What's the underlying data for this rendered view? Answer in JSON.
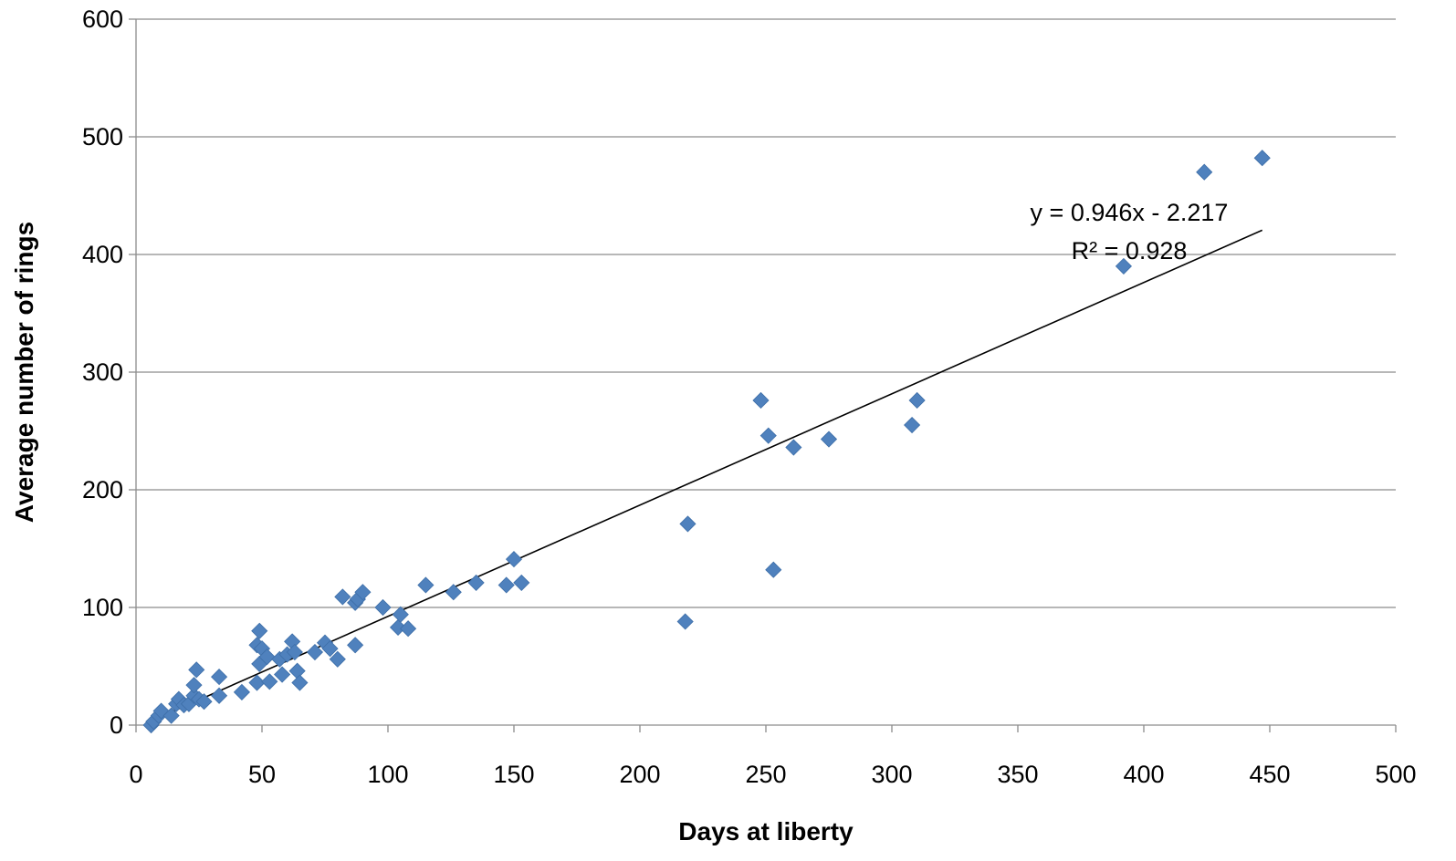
{
  "chart_data": {
    "type": "scatter",
    "title": "",
    "xlabel": "Days at liberty",
    "ylabel": "Average number of rings",
    "xlim": [
      0,
      500
    ],
    "ylim": [
      0,
      600
    ],
    "x_ticks": [
      "0",
      "50",
      "100",
      "150",
      "200",
      "250",
      "300",
      "350",
      "400",
      "450",
      "500"
    ],
    "y_ticks": [
      "0",
      "100",
      "200",
      "300",
      "400",
      "500",
      "600"
    ],
    "grid": "horizontal",
    "legend": "none",
    "marker": "diamond",
    "series": [
      {
        "color": "#4f81bd",
        "points": [
          [
            6,
            0
          ],
          [
            7,
            3
          ],
          [
            9,
            8
          ],
          [
            10,
            12
          ],
          [
            14,
            8
          ],
          [
            16,
            18
          ],
          [
            17,
            22
          ],
          [
            19,
            17
          ],
          [
            21,
            18
          ],
          [
            23,
            25
          ],
          [
            23,
            34
          ],
          [
            24,
            47
          ],
          [
            25,
            22
          ],
          [
            27,
            20
          ],
          [
            33,
            41
          ],
          [
            33,
            25
          ],
          [
            42,
            28
          ],
          [
            48,
            36
          ],
          [
            48,
            68
          ],
          [
            49,
            80
          ],
          [
            49,
            52
          ],
          [
            50,
            65
          ],
          [
            52,
            58
          ],
          [
            53,
            37
          ],
          [
            57,
            56
          ],
          [
            58,
            43
          ],
          [
            60,
            60
          ],
          [
            62,
            71
          ],
          [
            63,
            62
          ],
          [
            64,
            46
          ],
          [
            65,
            36
          ],
          [
            71,
            62
          ],
          [
            75,
            70
          ],
          [
            77,
            65
          ],
          [
            80,
            56
          ],
          [
            82,
            109
          ],
          [
            87,
            104
          ],
          [
            87,
            68
          ],
          [
            88,
            107
          ],
          [
            90,
            113
          ],
          [
            98,
            100
          ],
          [
            104,
            83
          ],
          [
            105,
            94
          ],
          [
            108,
            82
          ],
          [
            115,
            119
          ],
          [
            126,
            113
          ],
          [
            135,
            121
          ],
          [
            147,
            119
          ],
          [
            150,
            141
          ],
          [
            153,
            121
          ],
          [
            218,
            88
          ],
          [
            219,
            171
          ],
          [
            248,
            276
          ],
          [
            251,
            246
          ],
          [
            253,
            132
          ],
          [
            261,
            236
          ],
          [
            275,
            243
          ],
          [
            308,
            255
          ],
          [
            310,
            276
          ],
          [
            392,
            390
          ],
          [
            424,
            470
          ],
          [
            447,
            482
          ]
        ]
      }
    ],
    "trendline": {
      "slope": 0.946,
      "intercept": -2.217,
      "x_range": [
        6,
        447
      ],
      "equation_label": "y = 0.946x - 2.217",
      "r2_label": "R² = 0.928"
    }
  }
}
